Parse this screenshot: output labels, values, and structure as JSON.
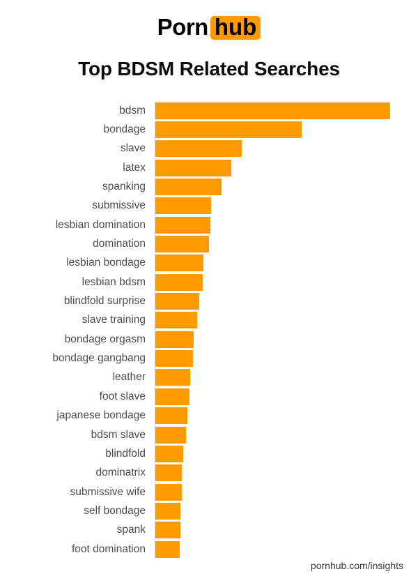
{
  "logo": {
    "part1": "Porn",
    "part2": "hub",
    "brand_orange": "#ff9900"
  },
  "chart_data": {
    "type": "bar",
    "orientation": "horizontal",
    "title": "Top BDSM Related Searches",
    "xlabel": "",
    "ylabel": "",
    "legend": false,
    "grid": false,
    "data_labels": false,
    "axis_line_color": "#d6d6d6",
    "bar_color": "#ff9900",
    "value_unit": "relative search volume (top search = 100, estimated from bar lengths; no numeric axis shown)",
    "categories": [
      "bdsm",
      "bondage",
      "slave",
      "latex",
      "spanking",
      "submissive",
      "lesbian domination",
      "domination",
      "lesbian bondage",
      "lesbian bdsm",
      "blindfold surprise",
      "slave training",
      "bondage orgasm",
      "bondage gangbang",
      "leather",
      "foot slave",
      "japanese bondage",
      "bdsm slave",
      "blindfold",
      "dominatrix",
      "submissive wife",
      "self bondage",
      "spank",
      "foot domination"
    ],
    "values": [
      100,
      62.3,
      36.8,
      32.3,
      28.2,
      23.7,
      23.4,
      22.8,
      20.5,
      20.2,
      18.7,
      17.8,
      16.3,
      16.0,
      14.8,
      14.5,
      13.6,
      13.1,
      11.9,
      11.3,
      11.3,
      10.7,
      10.7,
      10.4
    ]
  },
  "footer": {
    "source": "pornhub.com/insights"
  }
}
